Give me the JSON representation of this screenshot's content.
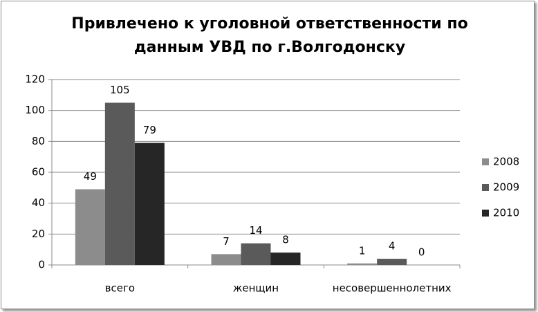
{
  "chart_data": {
    "type": "bar",
    "title": "Привлечено к уголовной ответственности по данным УВД по г.Волгодонску",
    "categories": [
      "всего",
      "женщин",
      "несовершеннолетних"
    ],
    "series": [
      {
        "name": "2008",
        "color": "#8c8c8c",
        "values": [
          49,
          7,
          1
        ]
      },
      {
        "name": "2009",
        "color": "#5a5a5a",
        "values": [
          105,
          14,
          4
        ]
      },
      {
        "name": "2010",
        "color": "#262626",
        "values": [
          79,
          8,
          0
        ]
      }
    ],
    "ylim": [
      0,
      120
    ],
    "yticks": [
      0,
      20,
      40,
      60,
      80,
      100,
      120
    ],
    "grid": true,
    "legend": "right"
  }
}
